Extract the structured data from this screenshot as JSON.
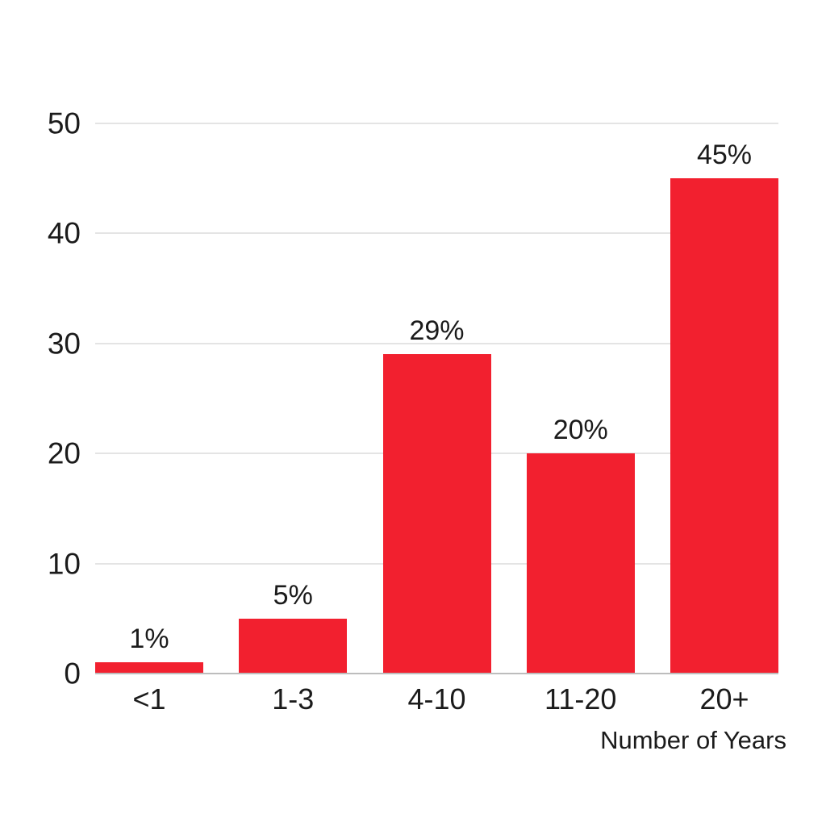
{
  "chart_data": {
    "type": "bar",
    "title": "",
    "categories": [
      "<1",
      "1-3",
      "4-10",
      "11-20",
      "20+"
    ],
    "values": [
      1,
      5,
      29,
      20,
      45
    ],
    "data_labels": [
      "1%",
      "5%",
      "29%",
      "20%",
      "45%"
    ],
    "xlabel": "Number of Years",
    "ylabel": "",
    "ylim": [
      0,
      50
    ],
    "yticks": [
      0,
      10,
      20,
      30,
      40,
      50
    ],
    "grid": "horizontal",
    "legend": "none",
    "colors": {
      "bar-color": "#F2202F",
      "gridline-color": "#E4E4E4",
      "axis-line-color": "#BDBDBD",
      "text-color": "#1B1B1B",
      "background": "#FFFFFF"
    }
  }
}
